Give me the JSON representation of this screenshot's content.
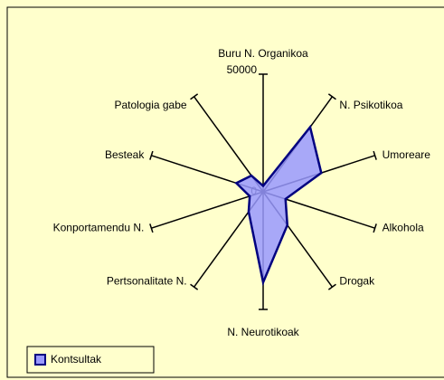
{
  "chart_data": {
    "type": "radar",
    "categories": [
      "Buru N. Organikoa",
      "N. Psikotikoa",
      "Umoreare",
      "Alkohola",
      "Drogak",
      "N. Neurotikoak",
      "Pertsonalitate N.",
      "Konportamendu N.",
      "Besteak",
      "Patologia gabe"
    ],
    "series": [
      {
        "name": "Kontsultak",
        "color": "#9999ff",
        "edge_color": "#000080",
        "values": [
          2500,
          34000,
          26000,
          10000,
          17500,
          38500,
          10500,
          6000,
          12000,
          8500
        ]
      }
    ],
    "ylim": [
      0,
      50000
    ],
    "yticks": [
      0,
      50000
    ],
    "legend": "bottom-left"
  }
}
